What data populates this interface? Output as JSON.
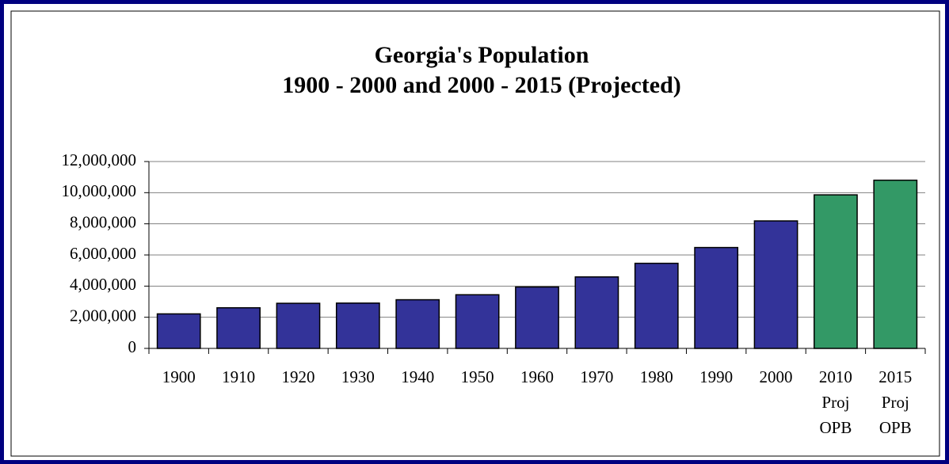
{
  "chart_data": {
    "type": "bar",
    "title": "Georgia's Population",
    "subtitle": "1900 - 2000 and 2000 - 2015 (Projected)",
    "categories": [
      "1900",
      "1910",
      "1920",
      "1930",
      "1940",
      "1950",
      "1960",
      "1970",
      "1980",
      "1990",
      "2000",
      "2010 Proj OPB",
      "2015 Proj OPB"
    ],
    "values": [
      2216000,
      2609000,
      2896000,
      2909000,
      3124000,
      3445000,
      3943000,
      4590000,
      5463000,
      6478000,
      8186000,
      9860000,
      10800000
    ],
    "colors": [
      "#333399",
      "#333399",
      "#333399",
      "#333399",
      "#333399",
      "#333399",
      "#333399",
      "#333399",
      "#333399",
      "#333399",
      "#333399",
      "#339966",
      "#339966"
    ],
    "ylim": [
      0,
      12000000
    ],
    "yticks": [
      0,
      {
        "value": 2000000,
        "label": "2,000,000"
      },
      {
        "value": 4000000,
        "label": "4,000,000"
      },
      {
        "value": 6000000,
        "label": "6,000,000"
      },
      {
        "value": 8000000,
        "label": "8,000,000"
      },
      {
        "value": 10000000,
        "label": "10,000,000"
      },
      {
        "value": 12000000,
        "label": "12,000,000"
      }
    ],
    "grid": true
  }
}
